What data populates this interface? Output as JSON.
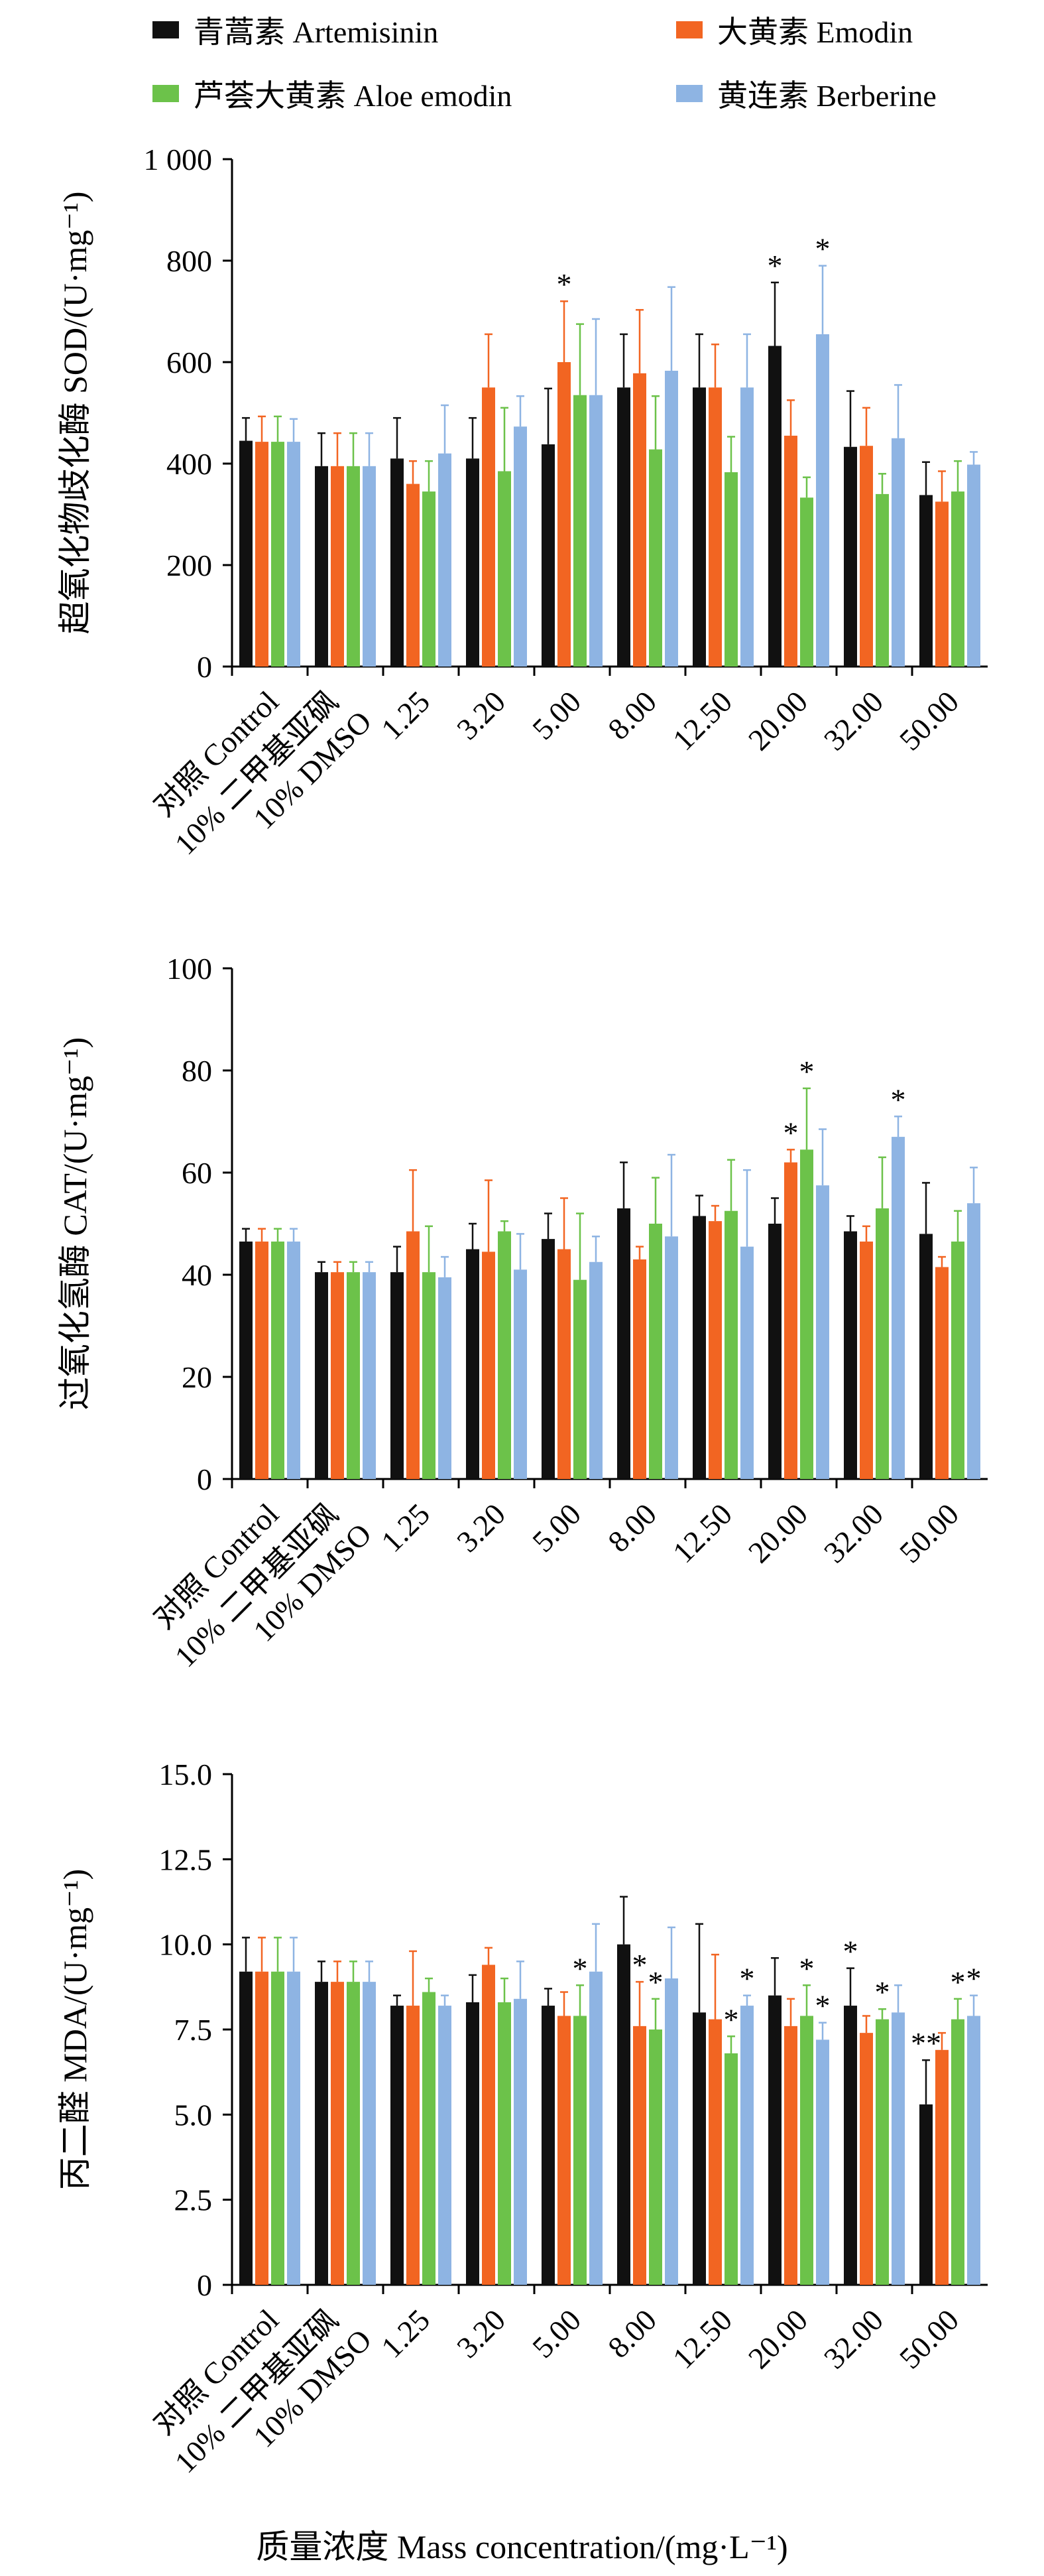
{
  "legend": [
    {
      "label": "青蒿素 Artemisinin",
      "color": "#111111"
    },
    {
      "label": "大黄素 Emodin",
      "color": "#f26522"
    },
    {
      "label": "芦荟大黄素 Aloe emodin",
      "color": "#6cc24a"
    },
    {
      "label": "黄连素 Berberine",
      "color": "#8eb4e3"
    }
  ],
  "x_axis_label": "质量浓度 Mass concentration/(mg·L⁻¹)",
  "chart_data": [
    {
      "type": "bar",
      "title": "",
      "ylabel": "超氧化物歧化酶 SOD/(U·mg⁻¹)",
      "ylim": [
        0,
        1000
      ],
      "yticks": [
        0,
        200,
        400,
        600,
        800,
        1000
      ],
      "ytick_labels": [
        "0",
        "200",
        "400",
        "600",
        "800",
        "1 000"
      ],
      "categories": [
        "对照 Control",
        "10% 二甲基亚砜 10% DMSO",
        "1.25",
        "3.20",
        "5.00",
        "8.00",
        "12.50",
        "20.00",
        "32.00",
        "50.00"
      ],
      "series": [
        {
          "name": "青蒿素 Artemisinin",
          "values": [
            445,
            395,
            410,
            410,
            438,
            550,
            550,
            632,
            433,
            338
          ],
          "errors": [
            45,
            65,
            80,
            80,
            110,
            105,
            105,
            125,
            110,
            65
          ],
          "stars": [
            "",
            "",
            "",
            "",
            "",
            "",
            "",
            "*",
            "",
            ""
          ]
        },
        {
          "name": "大黄素 Emodin",
          "values": [
            443,
            395,
            360,
            550,
            600,
            578,
            550,
            455,
            435,
            325
          ],
          "errors": [
            50,
            65,
            45,
            105,
            120,
            125,
            85,
            70,
            75,
            60
          ],
          "stars": [
            "",
            "",
            "",
            "",
            "*",
            "",
            "",
            "",
            "",
            ""
          ]
        },
        {
          "name": "芦荟大黄素 Aloe emodin",
          "values": [
            443,
            395,
            345,
            385,
            535,
            428,
            383,
            333,
            340,
            345
          ],
          "errors": [
            50,
            65,
            60,
            125,
            140,
            105,
            70,
            40,
            40,
            60
          ],
          "stars": [
            "",
            "",
            "",
            "",
            "",
            "",
            "",
            "",
            "",
            ""
          ]
        },
        {
          "name": "黄连素 Berberine",
          "values": [
            443,
            395,
            420,
            473,
            535,
            583,
            550,
            655,
            450,
            398
          ],
          "errors": [
            45,
            65,
            95,
            60,
            150,
            165,
            105,
            135,
            105,
            25
          ],
          "stars": [
            "",
            "",
            "",
            "",
            "",
            "",
            "",
            "*",
            "",
            ""
          ]
        }
      ]
    },
    {
      "type": "bar",
      "title": "",
      "ylabel": "过氧化氢酶 CAT/(U·mg⁻¹)",
      "ylim": [
        0,
        100
      ],
      "yticks": [
        0,
        20,
        40,
        60,
        80,
        100
      ],
      "ytick_labels": [
        "0",
        "20",
        "40",
        "60",
        "80",
        "100"
      ],
      "categories": [
        "对照 Control",
        "10% 二甲基亚砜 10% DMSO",
        "1.25",
        "3.20",
        "5.00",
        "8.00",
        "12.50",
        "20.00",
        "32.00",
        "50.00"
      ],
      "series": [
        {
          "name": "青蒿素 Artemisinin",
          "values": [
            46.5,
            40.5,
            40.5,
            45,
            47,
            53,
            51.5,
            50,
            48.5,
            48
          ],
          "errors": [
            2.5,
            2,
            5,
            5,
            5,
            9,
            4,
            5,
            3,
            10
          ],
          "stars": [
            "",
            "",
            "",
            "",
            "",
            "",
            "",
            "",
            "",
            ""
          ]
        },
        {
          "name": "大黄素 Emodin",
          "values": [
            46.5,
            40.5,
            48.5,
            44.5,
            45,
            43,
            50.5,
            62,
            46.5,
            41.5
          ],
          "errors": [
            2.5,
            2,
            12,
            14,
            10,
            2.5,
            3,
            2.5,
            3,
            2
          ],
          "stars": [
            "",
            "",
            "",
            "",
            "",
            "",
            "",
            "*",
            "",
            ""
          ]
        },
        {
          "name": "芦荟大黄素 Aloe emodin",
          "values": [
            46.5,
            40.5,
            40.5,
            48.5,
            39,
            50,
            52.5,
            64.5,
            53,
            46.5
          ],
          "errors": [
            2.5,
            2,
            9,
            2,
            13,
            9,
            10,
            12,
            10,
            6
          ],
          "stars": [
            "",
            "",
            "",
            "",
            "",
            "",
            "",
            "*",
            "",
            ""
          ]
        },
        {
          "name": "黄连素 Berberine",
          "values": [
            46.5,
            40.5,
            39.5,
            41,
            42.5,
            47.5,
            45.5,
            57.5,
            67,
            54
          ],
          "errors": [
            2.5,
            2,
            4,
            7,
            5,
            16,
            15,
            11,
            4,
            7
          ],
          "stars": [
            "",
            "",
            "",
            "",
            "",
            "",
            "",
            "",
            "*",
            ""
          ]
        }
      ]
    },
    {
      "type": "bar",
      "title": "",
      "ylabel": "丙二醛 MDA/(U·mg⁻¹)",
      "ylim": [
        0,
        15
      ],
      "yticks": [
        0,
        2.5,
        5,
        7.5,
        10,
        12.5,
        15
      ],
      "ytick_labels": [
        "0",
        "2.5",
        "5.0",
        "7.5",
        "10.0",
        "12.5",
        "15.0"
      ],
      "categories": [
        "对照 Control",
        "10% 二甲基亚砜 10% DMSO",
        "1.25",
        "3.20",
        "5.00",
        "8.00",
        "12.50",
        "20.00",
        "32.00",
        "50.00"
      ],
      "series": [
        {
          "name": "青蒿素 Artemisinin",
          "values": [
            9.2,
            8.9,
            8.2,
            8.3,
            8.2,
            10.0,
            8.0,
            8.5,
            8.2,
            5.3
          ],
          "errors": [
            1.0,
            0.6,
            0.3,
            0.8,
            0.5,
            1.4,
            2.6,
            1.1,
            1.1,
            1.3
          ],
          "stars": [
            "",
            "",
            "",
            "",
            "",
            "",
            "",
            "",
            "*",
            "**"
          ]
        },
        {
          "name": "大黄素 Emodin",
          "values": [
            9.2,
            8.9,
            8.2,
            9.4,
            7.9,
            7.6,
            7.8,
            7.6,
            7.4,
            6.9
          ],
          "errors": [
            1.0,
            0.6,
            1.6,
            0.5,
            0.7,
            1.3,
            1.9,
            0.8,
            0.5,
            0.5
          ],
          "stars": [
            "",
            "",
            "",
            "",
            "",
            "*",
            "",
            "",
            "",
            ""
          ]
        },
        {
          "name": "芦荟大黄素 Aloe emodin",
          "values": [
            9.2,
            8.9,
            8.6,
            8.3,
            7.9,
            7.5,
            6.8,
            7.9,
            7.8,
            7.8
          ],
          "errors": [
            1.0,
            0.6,
            0.4,
            0.7,
            0.9,
            0.9,
            0.5,
            0.9,
            0.3,
            0.6
          ],
          "stars": [
            "",
            "",
            "",
            "",
            "*",
            "*",
            "*",
            "*",
            "*",
            "*"
          ]
        },
        {
          "name": "黄连素 Berberine",
          "values": [
            9.2,
            8.9,
            8.2,
            8.4,
            9.2,
            9.0,
            8.2,
            7.2,
            8.0,
            7.9
          ],
          "errors": [
            1.0,
            0.6,
            0.3,
            1.1,
            1.4,
            1.5,
            0.3,
            0.5,
            0.8,
            0.6
          ],
          "stars": [
            "",
            "",
            "",
            "",
            "",
            "",
            "*",
            "*",
            "",
            "*"
          ]
        }
      ]
    }
  ]
}
